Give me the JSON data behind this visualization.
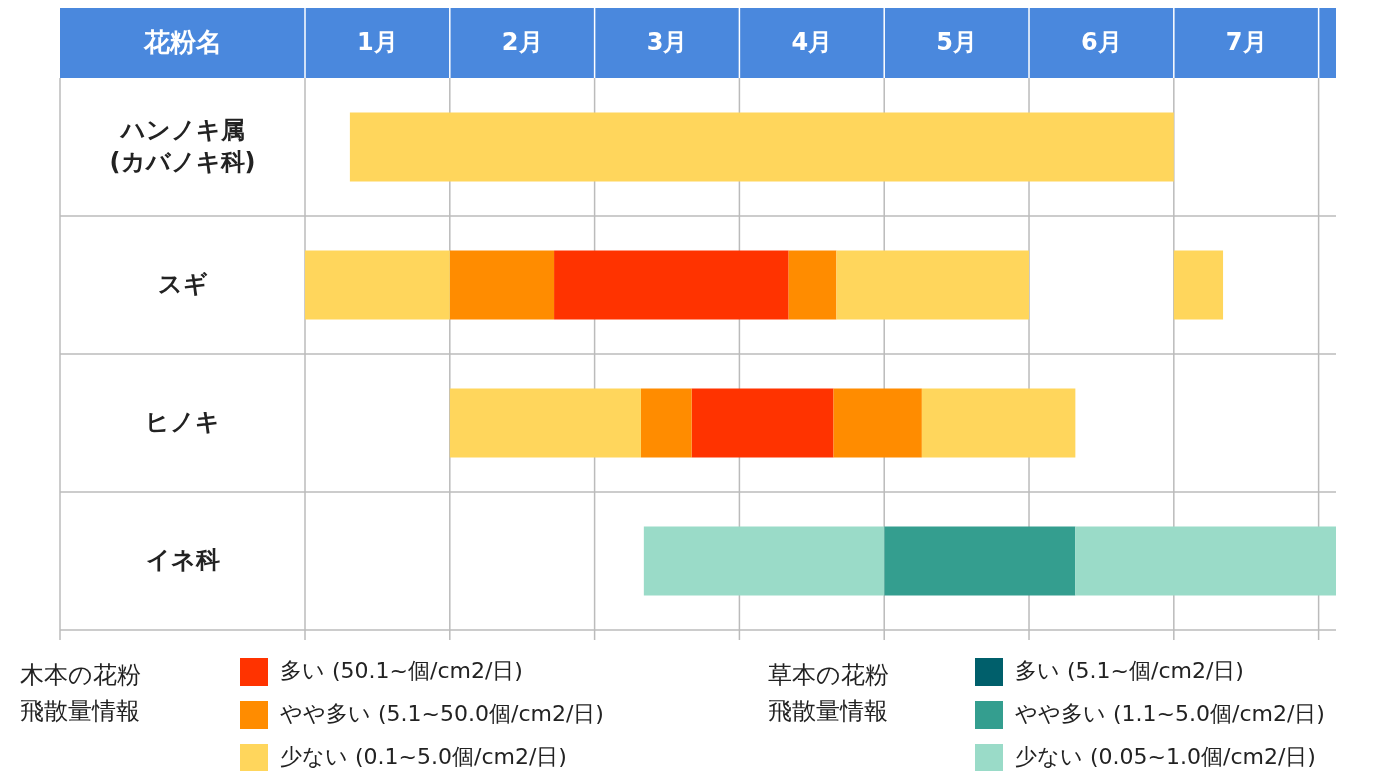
{
  "chart_data": {
    "type": "bar",
    "orientation": "horizontal",
    "ylabel": "花粉名",
    "categories": [
      "ハンノキ属\n(カバノキ科)",
      "スギ",
      "ヒノキ",
      "イネ科"
    ],
    "xlim": [
      1,
      8.12
    ],
    "xticks": [
      {
        "value": 1,
        "label": null
      },
      {
        "value": 1.5,
        "label": "1月"
      },
      {
        "value": 2,
        "label": null
      },
      {
        "value": 2.5,
        "label": "2月"
      },
      {
        "value": 3,
        "label": null
      },
      {
        "value": 3.5,
        "label": "3月"
      },
      {
        "value": 4,
        "label": null
      },
      {
        "value": 4.5,
        "label": "4月"
      },
      {
        "value": 5,
        "label": null
      },
      {
        "value": 5.5,
        "label": "5月"
      },
      {
        "value": 6,
        "label": null
      },
      {
        "value": 6.5,
        "label": "6月"
      },
      {
        "value": 7,
        "label": null
      },
      {
        "value": 7.5,
        "label": "7月"
      },
      {
        "value": 8,
        "label": null
      }
    ],
    "grid": true,
    "legend": "bottom",
    "annotations": [
      "木本の花粉飛散量情報",
      "草本の花粉飛散量情報"
    ],
    "series": [
      {
        "name": "多い (50.1~個/cm2/日)",
        "color": "#ff3300",
        "base": [
          null,
          2.72,
          3.67,
          null
        ],
        "values": [
          null,
          1.62,
          0.98,
          null
        ]
      },
      {
        "name": "やや多い (5.1~50.0個/cm2/日)",
        "color": "#ff8c00",
        "base": [
          null,
          2,
          3.32,
          null
        ],
        "values": [
          null,
          0.72,
          0.35,
          null
        ]
      },
      {
        "name": "少ない (0.1~5.0個/cm2/日)",
        "color": "#ffd65c",
        "base": [
          1.31,
          1,
          2,
          null
        ],
        "values": [
          5.69,
          1,
          1.32,
          null
        ]
      },
      {
        "name": "多い (5.1~個/cm2/日)",
        "color": "#005f6b",
        "base": [
          null,
          null,
          null,
          null
        ],
        "values": [
          null,
          null,
          null,
          null
        ]
      },
      {
        "name": "やや多い (1.1~5.0個/cm2/日)",
        "color": "#349e8f",
        "base": [
          null,
          null,
          null,
          5
        ],
        "values": [
          null,
          null,
          null,
          1.32
        ]
      },
      {
        "name": "少ない (0.05~1.0個/cm2/日)",
        "color": "#9adbc8",
        "base": [
          null,
          null,
          null,
          3.34
        ],
        "values": [
          null,
          null,
          null,
          1.66
        ]
      },
      {
        "color": "#ff8c00",
        "base": [
          null,
          4.34,
          4.65,
          null
        ],
        "values": [
          null,
          0.33,
          0.61,
          null
        ]
      },
      {
        "color": "#ffd65c",
        "base": [
          null,
          4.67,
          5.26,
          null
        ],
        "values": [
          null,
          1.33,
          1.06,
          null
        ]
      },
      {
        "color": "#ffd65c",
        "base": [
          null,
          7,
          null,
          null
        ],
        "values": [
          null,
          0.34,
          null,
          null
        ]
      },
      {
        "color": "#9adbc8",
        "base": [
          null,
          null,
          null,
          6.32
        ],
        "values": [
          null,
          null,
          null,
          1.8
        ]
      }
    ]
  }
}
